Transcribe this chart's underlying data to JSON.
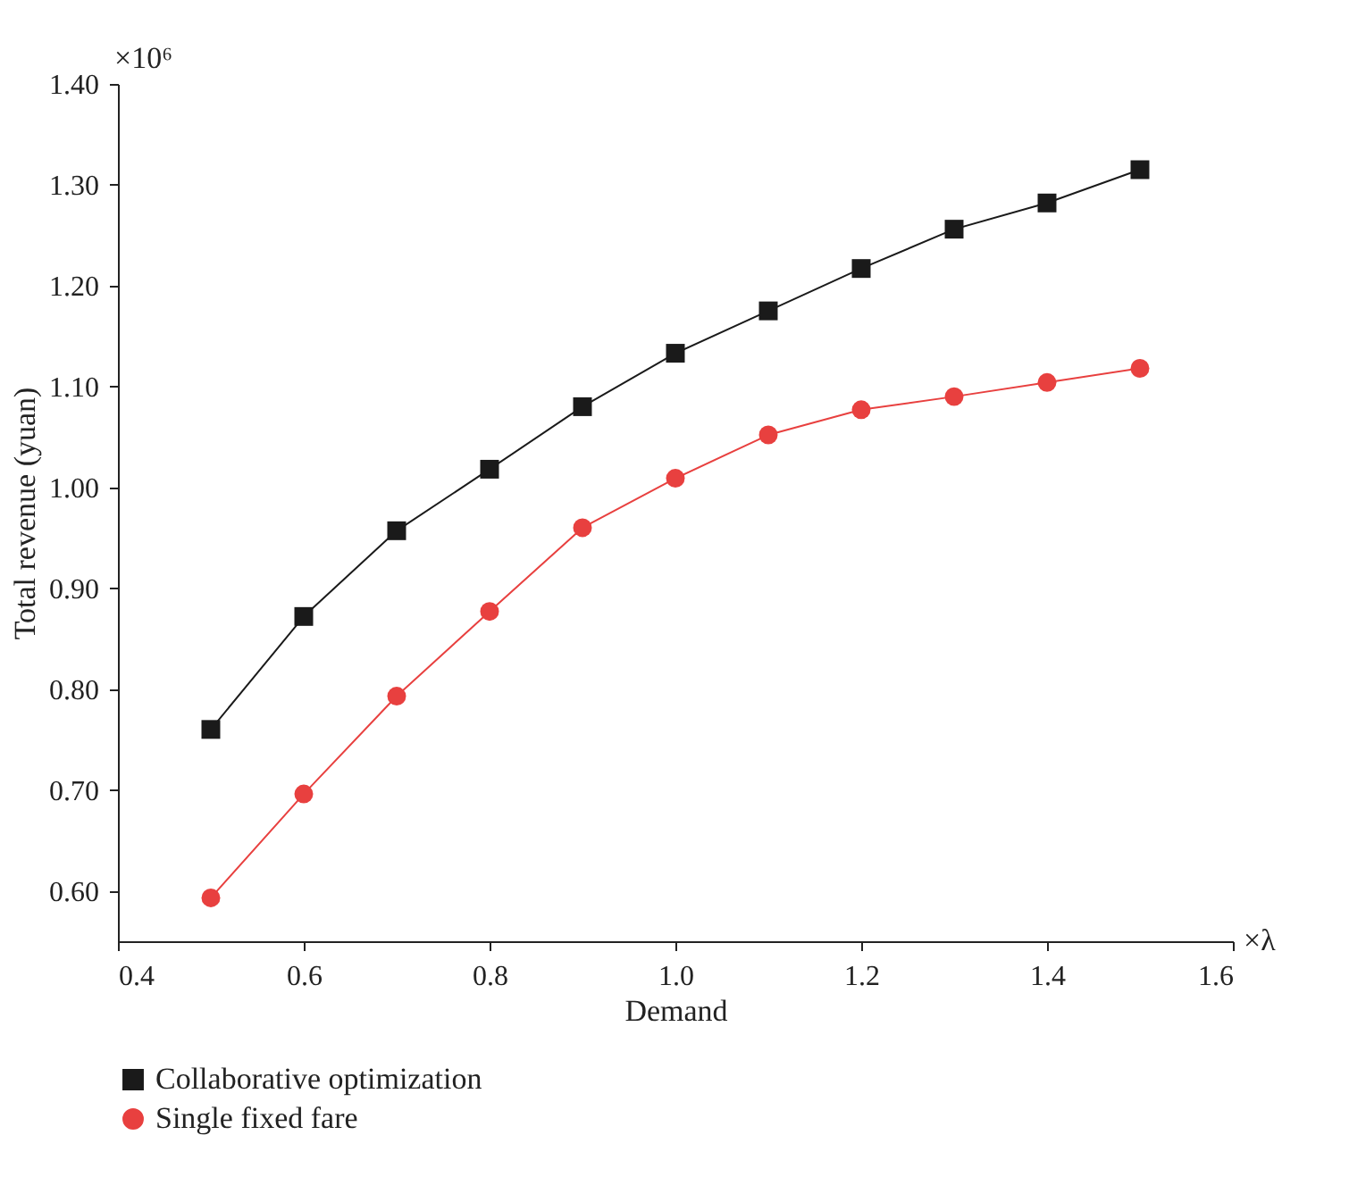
{
  "chart_data": {
    "type": "line",
    "xlabel": "Demand",
    "ylabel": "Total revenue (yuan)",
    "x": [
      0.5,
      0.6,
      0.7,
      0.8,
      0.9,
      1.0,
      1.1,
      1.2,
      1.3,
      1.4,
      1.5
    ],
    "series": [
      {
        "name": "Collaborative optimization",
        "color": "#1a1a1a",
        "marker": "square",
        "values": [
          0.76,
          0.872,
          0.957,
          1.018,
          1.08,
          1.133,
          1.175,
          1.217,
          1.256,
          1.282,
          1.315
        ]
      },
      {
        "name": "Single fixed fare",
        "color": "#e8403f",
        "marker": "circle",
        "values": [
          0.593,
          0.696,
          0.793,
          0.877,
          0.96,
          1.009,
          1.052,
          1.077,
          1.09,
          1.104,
          1.118
        ]
      }
    ],
    "xlim": [
      0.4,
      1.6
    ],
    "ylim": [
      0.55,
      1.4
    ],
    "xticks": [
      0.4,
      0.6,
      0.8,
      {
        "value": 1.0,
        "label": "1.0"
      },
      1.2,
      1.4,
      1.6
    ],
    "yticks": [
      {
        "value": 0.6,
        "label": "0.60"
      },
      {
        "value": 0.7,
        "label": "0.70"
      },
      {
        "value": 0.8,
        "label": "0.80"
      },
      {
        "value": 0.9,
        "label": "0.90"
      },
      {
        "value": 1.0,
        "label": "1.00"
      },
      {
        "value": 1.1,
        "label": "1.10"
      },
      {
        "value": 1.2,
        "label": "1.20"
      },
      {
        "value": 1.3,
        "label": "1.30"
      },
      {
        "value": 1.4,
        "label": "1.40"
      }
    ],
    "annotations": [
      "×10⁶",
      "×λ"
    ],
    "legend": "bottom left",
    "grid": false,
    "line_style": "solid"
  }
}
